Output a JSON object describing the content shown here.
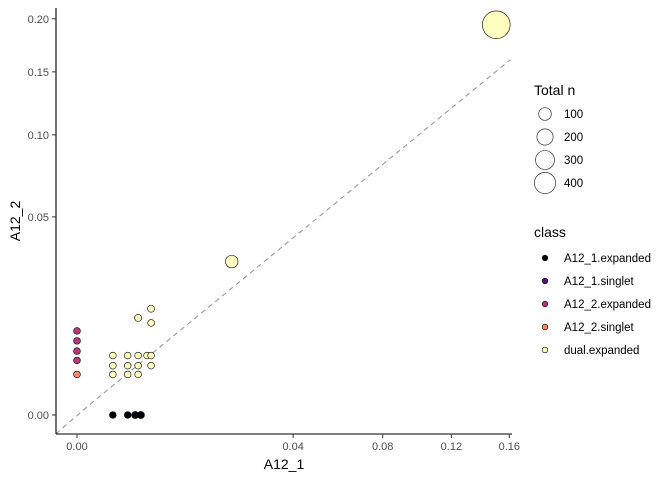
{
  "chart_data": {
    "type": "scatter",
    "title": "",
    "xlabel": "A12_1",
    "ylabel": "A12_2",
    "x_scale": "sqrt",
    "y_scale": "sqrt",
    "xlim": [
      0,
      0.165
    ],
    "ylim": [
      0,
      0.21
    ],
    "x_ticks": [
      {
        "value": 0,
        "label": "0.00"
      },
      {
        "value": 0.04,
        "label": "0.04"
      },
      {
        "value": 0.08,
        "label": "0.08"
      },
      {
        "value": 0.12,
        "label": "0.12"
      },
      {
        "value": 0.16,
        "label": "0.16"
      }
    ],
    "y_ticks": [
      {
        "value": 0,
        "label": "0.00"
      },
      {
        "value": 0.05,
        "label": "0.05"
      },
      {
        "value": 0.1,
        "label": "0.10"
      },
      {
        "value": 0.15,
        "label": "0.15"
      },
      {
        "value": 0.2,
        "label": "0.20"
      }
    ],
    "reference_line": {
      "style": "dashed",
      "color": "#999999",
      "description": "identity y = x"
    },
    "grid": false,
    "size_legend": {
      "title": "Total n",
      "entries": [
        {
          "label": "100",
          "value": 100
        },
        {
          "label": "200",
          "value": 200
        },
        {
          "label": "300",
          "value": 300
        },
        {
          "label": "400",
          "value": 400
        }
      ]
    },
    "color_legend": {
      "title": "class",
      "entries": [
        {
          "label": "A12_1.expanded",
          "color": "#000004"
        },
        {
          "label": "A12_1.singlet",
          "color": "#51127c"
        },
        {
          "label": "A12_2.expanded",
          "color": "#b73779"
        },
        {
          "label": "A12_2.singlet",
          "color": "#fc8961"
        },
        {
          "label": "dual.expanded",
          "color": "#fcfdbf"
        }
      ]
    },
    "series": [
      {
        "name": "A12_1.expanded",
        "color": "#000004",
        "points": [
          {
            "x": 0.0011,
            "y": 0,
            "n": 2
          },
          {
            "x": 0.0022,
            "y": 0,
            "n": 2
          },
          {
            "x": 0.0029,
            "y": 0,
            "n": 3
          },
          {
            "x": 0.0035,
            "y": 0,
            "n": 3
          }
        ]
      },
      {
        "name": "A12_1.singlet",
        "color": "#51127c",
        "points": []
      },
      {
        "name": "A12_2.expanded",
        "color": "#b73779",
        "points": [
          {
            "x": 0,
            "y": 0.009,
            "n": 2
          },
          {
            "x": 0,
            "y": 0.007,
            "n": 2
          },
          {
            "x": 0,
            "y": 0.0052,
            "n": 2
          },
          {
            "x": 0,
            "y": 0.0038,
            "n": 2
          }
        ]
      },
      {
        "name": "A12_2.singlet",
        "color": "#fc8961",
        "points": [
          {
            "x": 0,
            "y": 0.0021,
            "n": 2
          }
        ]
      },
      {
        "name": "dual.expanded",
        "color": "#fcfdbf",
        "points": [
          {
            "x": 0.0011,
            "y": 0.0045,
            "n": 2
          },
          {
            "x": 0.0011,
            "y": 0.0031,
            "n": 2
          },
          {
            "x": 0.0011,
            "y": 0.0021,
            "n": 2
          },
          {
            "x": 0.0022,
            "y": 0.0045,
            "n": 2
          },
          {
            "x": 0.0022,
            "y": 0.0031,
            "n": 2
          },
          {
            "x": 0.0022,
            "y": 0.0021,
            "n": 2
          },
          {
            "x": 0.0032,
            "y": 0.0045,
            "n": 2
          },
          {
            "x": 0.0032,
            "y": 0.0031,
            "n": 2
          },
          {
            "x": 0.0032,
            "y": 0.0021,
            "n": 2
          },
          {
            "x": 0.0032,
            "y": 0.012,
            "n": 3
          },
          {
            "x": 0.0042,
            "y": 0.0045,
            "n": 2
          },
          {
            "x": 0.0047,
            "y": 0.0144,
            "n": 3
          },
          {
            "x": 0.0047,
            "y": 0.0108,
            "n": 2
          },
          {
            "x": 0.0047,
            "y": 0.0045,
            "n": 2
          },
          {
            "x": 0.0047,
            "y": 0.0031,
            "n": 2
          },
          {
            "x": 0.0205,
            "y": 0.03,
            "n": 45
          },
          {
            "x": 0.1505,
            "y": 0.194,
            "n": 420
          }
        ]
      }
    ]
  }
}
